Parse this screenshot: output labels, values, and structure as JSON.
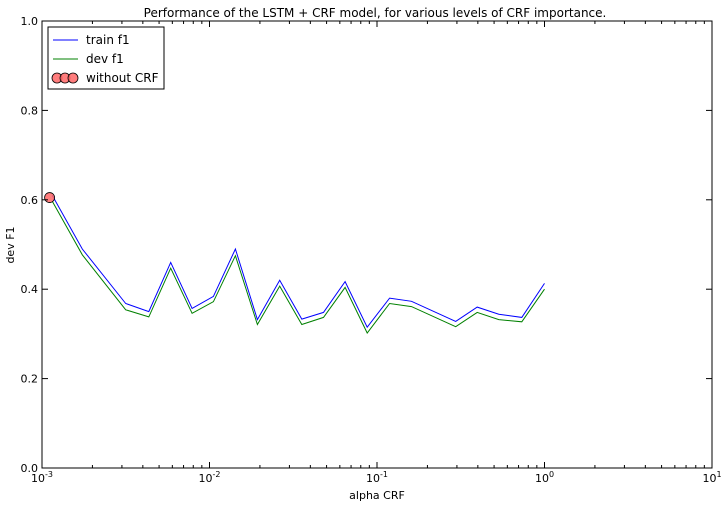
{
  "chart_data": {
    "type": "line",
    "title": "Performance of the LSTM + CRF model, for various levels of CRF importance.",
    "xlabel": "alpha CRF",
    "ylabel": "dev F1",
    "xscale": "log",
    "xlim": [
      0.001,
      10
    ],
    "ylim": [
      0.0,
      1.0
    ],
    "x_ticks": [
      {
        "value": 0.001,
        "base": "10",
        "exp": "-3"
      },
      {
        "value": 0.01,
        "base": "10",
        "exp": "-2"
      },
      {
        "value": 0.1,
        "base": "10",
        "exp": "-1"
      },
      {
        "value": 1,
        "base": "10",
        "exp": "0"
      },
      {
        "value": 10,
        "base": "10",
        "exp": "1"
      }
    ],
    "y_ticks": [
      {
        "value": 0.0,
        "label": "0.0"
      },
      {
        "value": 0.2,
        "label": "0.2"
      },
      {
        "value": 0.4,
        "label": "0.4"
      },
      {
        "value": 0.6,
        "label": "0.6"
      },
      {
        "value": 0.8,
        "label": "0.8"
      },
      {
        "value": 1.0,
        "label": "1.0"
      }
    ],
    "grid": false,
    "legend_position": "top-left",
    "series": [
      {
        "name": "train f1",
        "color": "#0000ff",
        "marker": "none",
        "x": [
          0.00115,
          0.00174,
          0.00316,
          0.00434,
          0.00587,
          0.00787,
          0.01055,
          0.01427,
          0.01932,
          0.02625,
          0.03557,
          0.04796,
          0.06447,
          0.08739,
          0.11885,
          0.16078,
          0.29512,
          0.39631,
          0.53333,
          0.73148,
          1.0
        ],
        "y": [
          0.61,
          0.49,
          0.368,
          0.35,
          0.46,
          0.357,
          0.384,
          0.49,
          0.332,
          0.42,
          0.333,
          0.348,
          0.417,
          0.315,
          0.38,
          0.373,
          0.328,
          0.36,
          0.344,
          0.337,
          0.413
        ]
      },
      {
        "name": "dev f1",
        "color": "#008000",
        "marker": "none",
        "x": [
          0.00115,
          0.00174,
          0.00316,
          0.00434,
          0.00587,
          0.00787,
          0.01055,
          0.01427,
          0.01932,
          0.02625,
          0.03557,
          0.04796,
          0.06447,
          0.08739,
          0.11885,
          0.16078,
          0.29512,
          0.39631,
          0.53333,
          0.73148,
          1.0
        ],
        "y": [
          0.597,
          0.477,
          0.354,
          0.338,
          0.447,
          0.346,
          0.372,
          0.475,
          0.321,
          0.407,
          0.321,
          0.337,
          0.404,
          0.302,
          0.368,
          0.361,
          0.316,
          0.348,
          0.332,
          0.327,
          0.4
        ]
      },
      {
        "name": "without CRF",
        "color": "#ff6666",
        "marker": "circle",
        "line": false,
        "x": [
          0.00111
        ],
        "y": [
          0.605
        ]
      }
    ]
  }
}
